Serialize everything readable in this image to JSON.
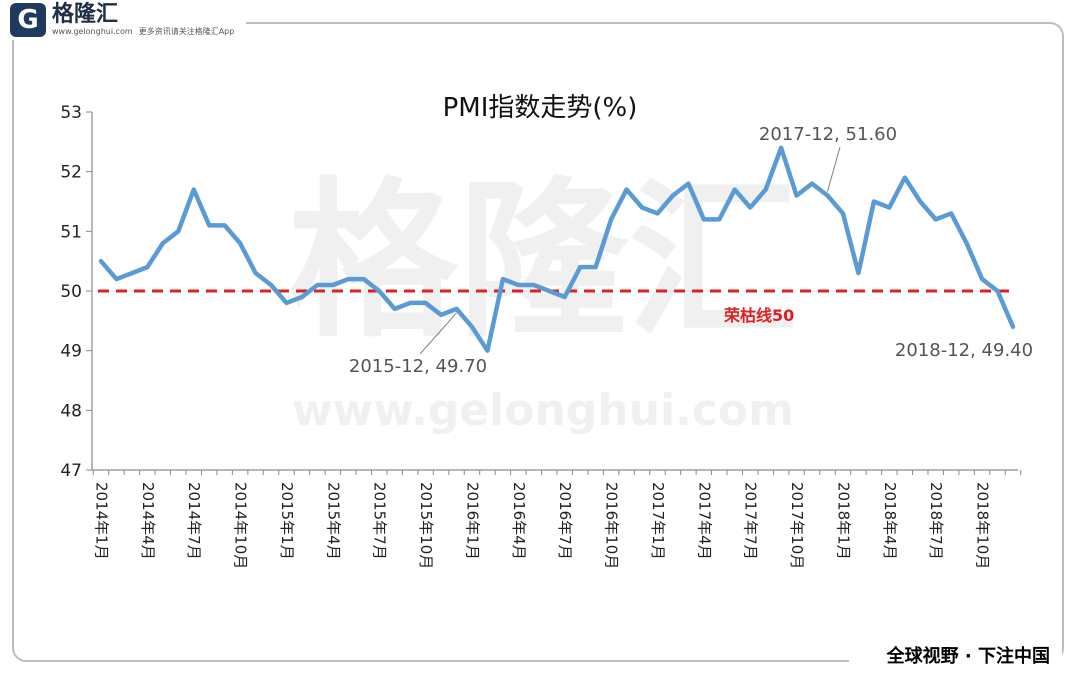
{
  "brand": {
    "mark": "G",
    "name": "格隆汇",
    "domain": "www.gelonghui.com",
    "slogan": "更多资讯请关注格隆汇App",
    "watermark_name": "格隆汇",
    "watermark_url": "www.gelonghui.com"
  },
  "footer": {
    "tagline": "全球视野 · 下注中国"
  },
  "chart_data": {
    "type": "line",
    "title": "PMI指数走势(%)",
    "xlabel": "",
    "ylabel": "",
    "ylim": [
      47,
      53
    ],
    "yticks": [
      "47",
      "48",
      "49",
      "50",
      "51",
      "52",
      "53"
    ],
    "grid": false,
    "x_tick_labels": [
      "2014年1月",
      "2014年4月",
      "2014年7月",
      "2014年10月",
      "2015年1月",
      "2015年4月",
      "2015年7月",
      "2015年10月",
      "2016年1月",
      "2016年4月",
      "2016年7月",
      "2016年10月",
      "2017年1月",
      "2017年4月",
      "2017年7月",
      "2017年10月",
      "2018年1月",
      "2018年4月",
      "2018年7月",
      "2018年10月"
    ],
    "series": [
      {
        "name": "",
        "color": "#5b9bd5",
        "values": [
          50.5,
          50.2,
          50.3,
          50.4,
          50.8,
          51.0,
          51.7,
          51.1,
          51.1,
          50.8,
          50.3,
          50.1,
          49.8,
          49.9,
          50.1,
          50.1,
          50.2,
          50.2,
          50.0,
          49.7,
          49.8,
          49.8,
          49.6,
          49.7,
          49.4,
          49.0,
          50.2,
          50.1,
          50.1,
          50.0,
          49.9,
          50.4,
          50.4,
          51.2,
          51.7,
          51.4,
          51.3,
          51.6,
          51.8,
          51.2,
          51.2,
          51.7,
          51.4,
          51.7,
          52.4,
          51.6,
          51.8,
          51.6,
          51.3,
          50.3,
          51.5,
          51.4,
          51.9,
          51.5,
          51.2,
          51.3,
          50.8,
          50.2,
          50.0,
          49.4
        ]
      }
    ],
    "reference_line": {
      "value": 50,
      "label": "荣枯线50",
      "color": "#e02020",
      "style": "dashed"
    },
    "annotations": [
      {
        "text": "2017-12, 51.60",
        "index": 47,
        "value": 51.6
      },
      {
        "text": "2015-12, 49.70",
        "index": 23,
        "value": 49.7
      },
      {
        "text": "2018-12, 49.40",
        "index": 59,
        "value": 49.4
      }
    ]
  }
}
